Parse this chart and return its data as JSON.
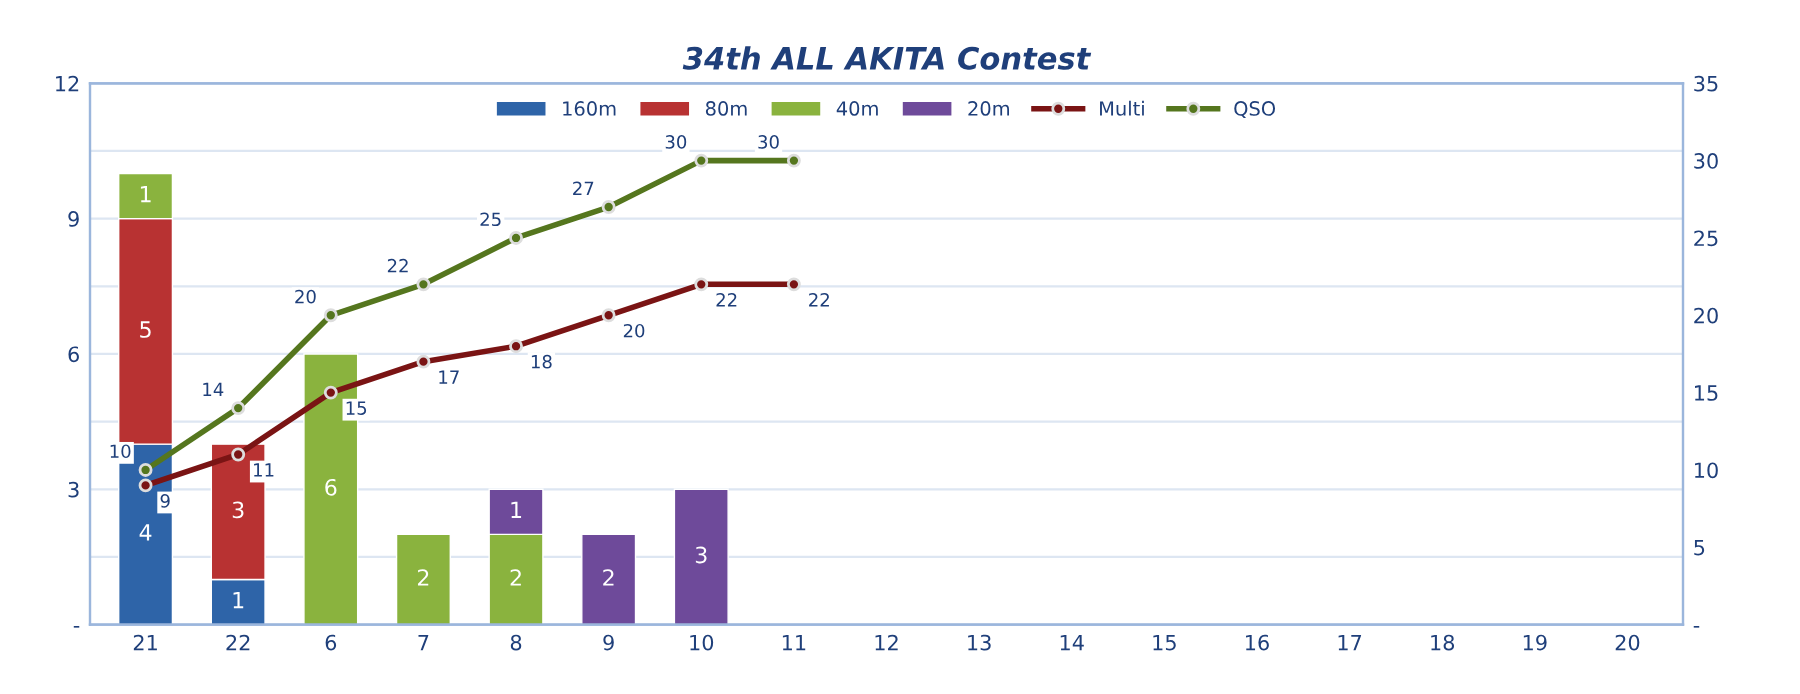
{
  "chart_data": {
    "type": "bar",
    "title": "34th ALL AKITA Contest",
    "stacked": true,
    "data_labels": true,
    "grid": "y",
    "legend": "top",
    "categories": [
      "21",
      "22",
      "6",
      "7",
      "8",
      "9",
      "10",
      "11",
      "12",
      "13",
      "14",
      "15",
      "16",
      "17",
      "18",
      "19",
      "20"
    ],
    "series": [
      {
        "name": "160m",
        "color": "#2e64a8",
        "values": [
          4,
          1,
          null,
          null,
          null,
          null,
          null,
          null,
          null,
          null,
          null,
          null,
          null,
          null,
          null,
          null,
          null
        ]
      },
      {
        "name": "80m",
        "color": "#b83232",
        "values": [
          5,
          3,
          null,
          null,
          null,
          null,
          null,
          null,
          null,
          null,
          null,
          null,
          null,
          null,
          null,
          null,
          null
        ]
      },
      {
        "name": "40m",
        "color": "#8ab33e",
        "values": [
          1,
          null,
          6,
          2,
          2,
          null,
          null,
          null,
          null,
          null,
          null,
          null,
          null,
          null,
          null,
          null,
          null
        ]
      },
      {
        "name": "20m",
        "color": "#6e4a9a",
        "values": [
          null,
          null,
          null,
          null,
          1,
          2,
          3,
          null,
          null,
          null,
          null,
          null,
          null,
          null,
          null,
          null,
          null
        ]
      },
      {
        "name": "Multi",
        "type": "line",
        "axis": "y2",
        "marker": "circle",
        "color": "#7a1414",
        "values": [
          9,
          11,
          15,
          17,
          18,
          20,
          22,
          22,
          null,
          null,
          null,
          null,
          null,
          null,
          null,
          null,
          null
        ]
      },
      {
        "name": "QSO",
        "type": "line",
        "axis": "y2",
        "marker": "circle",
        "color": "#55761e",
        "values": [
          10,
          14,
          20,
          22,
          25,
          27,
          30,
          30,
          null,
          null,
          null,
          null,
          null,
          null,
          null,
          null,
          null
        ]
      }
    ],
    "ylim": [
      0,
      12
    ],
    "yticks": [
      {
        "value": 0,
        "label": "-"
      },
      {
        "value": 1.5,
        "label": null
      },
      3,
      {
        "value": 4.5,
        "label": null
      },
      6,
      {
        "value": 7.5,
        "label": null
      },
      9,
      {
        "value": 10.5,
        "label": null
      },
      12
    ],
    "y2lim": [
      0,
      35
    ],
    "y2ticks": [
      {
        "value": 0,
        "label": "-"
      },
      5,
      10,
      15,
      20,
      25,
      30,
      35
    ]
  }
}
